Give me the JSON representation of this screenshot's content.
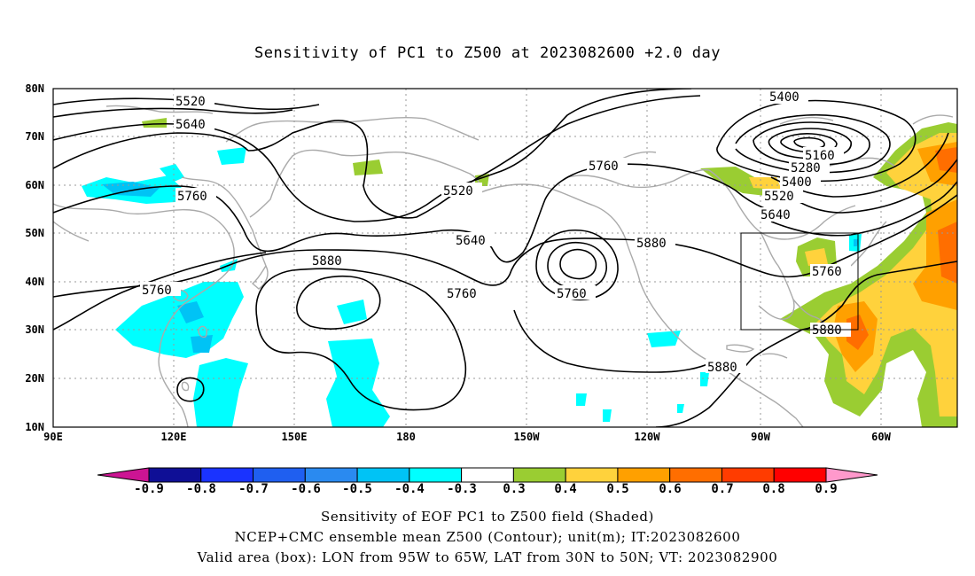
{
  "title": "Sensitivity of PC1 to Z500 at 2023082600 +2.0 day",
  "axes": {
    "lat_labels": [
      "80N",
      "70N",
      "60N",
      "50N",
      "40N",
      "30N",
      "20N",
      "10N"
    ],
    "lon_labels": [
      "90E",
      "120E",
      "150E",
      "180",
      "150W",
      "120W",
      "90W",
      "60W"
    ]
  },
  "contour_labels": [
    "5520",
    "5640",
    "5760",
    "5520",
    "5640",
    "5760",
    "5880",
    "5760",
    "5760",
    "5880",
    "5880",
    "5400",
    "5160",
    "5280",
    "5400",
    "5520",
    "5640",
    "5760",
    "5880",
    "5760"
  ],
  "colorbar": {
    "labels": [
      "-0.9",
      "-0.8",
      "-0.7",
      "-0.6",
      "-0.5",
      "-0.4",
      "-0.3",
      "0.3",
      "0.4",
      "0.5",
      "0.6",
      "0.7",
      "0.8",
      "0.9"
    ],
    "colors": [
      "#cc1493",
      "#0f0f96",
      "#1a33ff",
      "#1f5ff0",
      "#2a8af0",
      "#00c3f5",
      "#00ffff",
      "#ffffff",
      "#9acd32",
      "#ffd23c",
      "#ffa000",
      "#ff6e00",
      "#ff3c00",
      "#ff0000",
      "#ff99cc"
    ]
  },
  "footer": [
    "Sensitivity of EOF PC1 to Z500 field (Shaded)",
    "NCEP+CMC ensemble mean Z500 (Contour); unit(m); IT:2023082600",
    "Valid area (box): LON from 95W to 65W, LAT from 30N to 50N; VT: 2023082900"
  ]
}
